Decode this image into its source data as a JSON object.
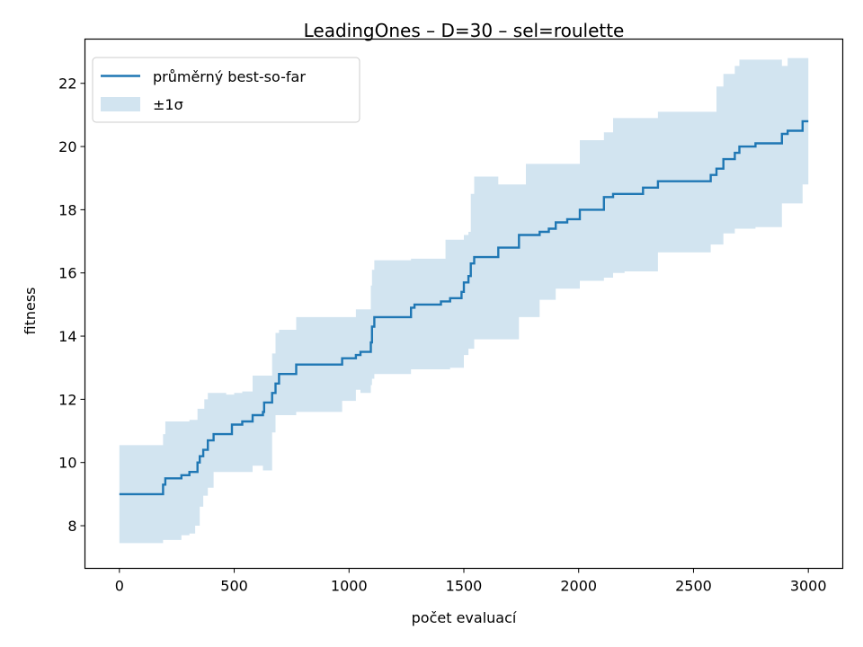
{
  "chart_data": {
    "type": "line",
    "title": "LeadingOnes – D=30 – sel=roulette",
    "xlabel": "počet evaluací",
    "ylabel": "fitness",
    "xlim": [
      -150,
      3150
    ],
    "ylim": [
      6.65,
      23.4
    ],
    "xticks": [
      0,
      500,
      1000,
      1500,
      2000,
      2500,
      3000
    ],
    "yticks": [
      8,
      10,
      12,
      14,
      16,
      18,
      20,
      22
    ],
    "grid": false,
    "legend": {
      "position": "top-left",
      "entries": [
        {
          "label": "průměrný best-so-far",
          "kind": "line",
          "color": "#1f77b4"
        },
        {
          "label": "±1σ",
          "kind": "band",
          "color": "#1f77b4"
        }
      ]
    },
    "series": [
      {
        "name": "průměrný best-so-far",
        "color": "#1f77b4",
        "style": "step",
        "points": [
          [
            0,
            9.0
          ],
          [
            190,
            9.0
          ],
          [
            190,
            9.3
          ],
          [
            200,
            9.5
          ],
          [
            270,
            9.6
          ],
          [
            305,
            9.7
          ],
          [
            340,
            10.0
          ],
          [
            350,
            10.2
          ],
          [
            365,
            10.4
          ],
          [
            385,
            10.7
          ],
          [
            410,
            10.9
          ],
          [
            490,
            11.2
          ],
          [
            535,
            11.3
          ],
          [
            580,
            11.5
          ],
          [
            625,
            11.6
          ],
          [
            630,
            11.9
          ],
          [
            665,
            12.2
          ],
          [
            680,
            12.5
          ],
          [
            695,
            12.8
          ],
          [
            770,
            13.1
          ],
          [
            970,
            13.3
          ],
          [
            1030,
            13.4
          ],
          [
            1050,
            13.5
          ],
          [
            1095,
            13.8
          ],
          [
            1100,
            14.3
          ],
          [
            1110,
            14.6
          ],
          [
            1270,
            14.9
          ],
          [
            1285,
            15.0
          ],
          [
            1400,
            15.1
          ],
          [
            1440,
            15.2
          ],
          [
            1490,
            15.4
          ],
          [
            1500,
            15.7
          ],
          [
            1520,
            15.9
          ],
          [
            1530,
            16.3
          ],
          [
            1545,
            16.5
          ],
          [
            1650,
            16.8
          ],
          [
            1740,
            17.2
          ],
          [
            1830,
            17.3
          ],
          [
            1870,
            17.4
          ],
          [
            1900,
            17.6
          ],
          [
            1950,
            17.7
          ],
          [
            2005,
            18.0
          ],
          [
            2110,
            18.4
          ],
          [
            2150,
            18.5
          ],
          [
            2280,
            18.7
          ],
          [
            2345,
            18.9
          ],
          [
            2575,
            19.1
          ],
          [
            2600,
            19.3
          ],
          [
            2630,
            19.6
          ],
          [
            2680,
            19.8
          ],
          [
            2700,
            20.0
          ],
          [
            2770,
            20.1
          ],
          [
            2885,
            20.4
          ],
          [
            2910,
            20.5
          ],
          [
            2975,
            20.8
          ],
          [
            3000,
            20.8
          ]
        ]
      },
      {
        "name": "±1σ",
        "color": "#1f77b4",
        "style": "band",
        "upper": [
          [
            0,
            10.55
          ],
          [
            190,
            10.55
          ],
          [
            190,
            10.9
          ],
          [
            200,
            11.3
          ],
          [
            305,
            11.35
          ],
          [
            340,
            11.7
          ],
          [
            370,
            12.0
          ],
          [
            385,
            12.2
          ],
          [
            465,
            12.15
          ],
          [
            500,
            12.2
          ],
          [
            535,
            12.25
          ],
          [
            580,
            12.75
          ],
          [
            630,
            12.75
          ],
          [
            665,
            13.45
          ],
          [
            680,
            14.1
          ],
          [
            695,
            14.2
          ],
          [
            770,
            14.6
          ],
          [
            970,
            14.6
          ],
          [
            1030,
            14.85
          ],
          [
            1095,
            15.6
          ],
          [
            1100,
            16.1
          ],
          [
            1110,
            16.4
          ],
          [
            1270,
            16.45
          ],
          [
            1410,
            16.45
          ],
          [
            1420,
            17.05
          ],
          [
            1490,
            17.05
          ],
          [
            1500,
            17.2
          ],
          [
            1520,
            17.3
          ],
          [
            1530,
            18.5
          ],
          [
            1545,
            19.05
          ],
          [
            1650,
            18.8
          ],
          [
            1740,
            18.8
          ],
          [
            1770,
            19.45
          ],
          [
            1870,
            19.45
          ],
          [
            1950,
            19.45
          ],
          [
            2005,
            20.2
          ],
          [
            2110,
            20.45
          ],
          [
            2150,
            20.9
          ],
          [
            2280,
            20.9
          ],
          [
            2345,
            21.1
          ],
          [
            2575,
            21.1
          ],
          [
            2600,
            21.9
          ],
          [
            2630,
            22.3
          ],
          [
            2680,
            22.55
          ],
          [
            2700,
            22.75
          ],
          [
            2770,
            22.75
          ],
          [
            2885,
            22.55
          ],
          [
            2910,
            22.8
          ],
          [
            3000,
            22.8
          ]
        ],
        "lower": [
          [
            0,
            7.45
          ],
          [
            190,
            7.45
          ],
          [
            190,
            7.55
          ],
          [
            260,
            7.55
          ],
          [
            270,
            7.7
          ],
          [
            305,
            7.75
          ],
          [
            330,
            8.0
          ],
          [
            350,
            8.6
          ],
          [
            365,
            8.95
          ],
          [
            385,
            9.2
          ],
          [
            410,
            9.7
          ],
          [
            500,
            9.7
          ],
          [
            580,
            9.9
          ],
          [
            625,
            9.75
          ],
          [
            665,
            10.95
          ],
          [
            680,
            11.5
          ],
          [
            770,
            11.6
          ],
          [
            970,
            11.95
          ],
          [
            1030,
            12.3
          ],
          [
            1050,
            12.2
          ],
          [
            1095,
            12.45
          ],
          [
            1100,
            12.65
          ],
          [
            1110,
            12.8
          ],
          [
            1270,
            12.95
          ],
          [
            1400,
            12.95
          ],
          [
            1440,
            13.0
          ],
          [
            1500,
            13.4
          ],
          [
            1520,
            13.6
          ],
          [
            1545,
            13.9
          ],
          [
            1650,
            13.9
          ],
          [
            1740,
            14.6
          ],
          [
            1830,
            15.15
          ],
          [
            1870,
            15.15
          ],
          [
            1900,
            15.5
          ],
          [
            2005,
            15.75
          ],
          [
            2110,
            15.85
          ],
          [
            2150,
            16.0
          ],
          [
            2200,
            16.05
          ],
          [
            2345,
            16.65
          ],
          [
            2575,
            16.9
          ],
          [
            2600,
            16.9
          ],
          [
            2630,
            17.25
          ],
          [
            2680,
            17.4
          ],
          [
            2770,
            17.45
          ],
          [
            2885,
            18.2
          ],
          [
            2975,
            18.8
          ],
          [
            3000,
            18.8
          ]
        ]
      }
    ]
  }
}
